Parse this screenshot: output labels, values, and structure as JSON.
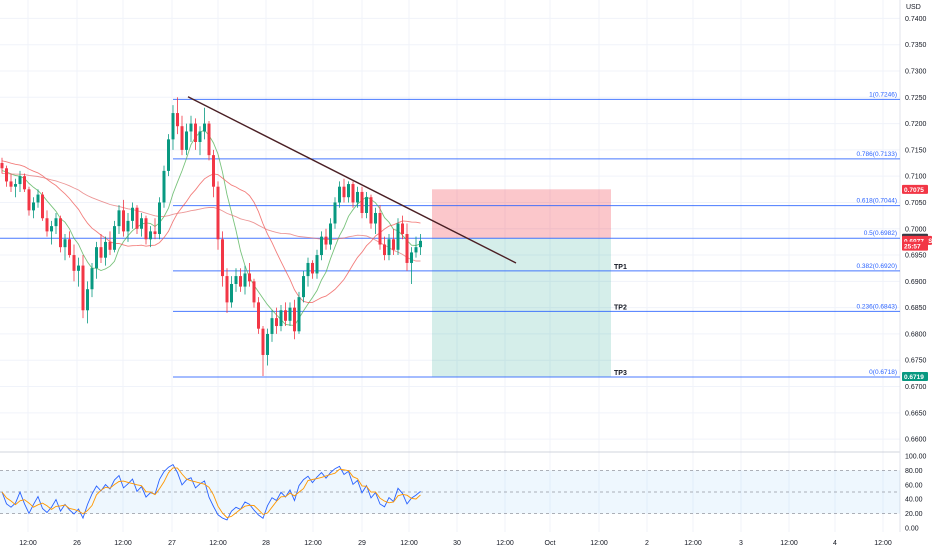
{
  "chart_data": {
    "type": "candlestick",
    "symbol": "MANAUSD",
    "currency_label": "USD",
    "price_axis": {
      "min": 0.6585,
      "max": 0.7435,
      "ticks": [
        "0.7400",
        "0.7350",
        "0.7300",
        "0.7250",
        "0.7200",
        "0.7150",
        "0.7100",
        "0.7050",
        "0.7000",
        "0.6950",
        "0.6900",
        "0.6850",
        "0.6800",
        "0.6750",
        "0.6700",
        "0.6650",
        "0.6600"
      ]
    },
    "time_axis": {
      "labels": [
        "12:00",
        "26",
        "12:00",
        "27",
        "12:00",
        "28",
        "12:00",
        "29",
        "12:00",
        "30",
        "12:00",
        "Oct",
        "12:00",
        "2",
        "12:00",
        "3",
        "12:00",
        "4",
        "12:00"
      ]
    },
    "fib_levels": [
      {
        "ratio": "1",
        "value": 0.7246,
        "label": "1(0.7246)"
      },
      {
        "ratio": "0.786",
        "value": 0.7133,
        "label": "0.786(0.7133)"
      },
      {
        "ratio": "0.618",
        "value": 0.7044,
        "label": "0.618(0.7044)"
      },
      {
        "ratio": "0.5",
        "value": 0.6982,
        "label": "0.5(0.6982)"
      },
      {
        "ratio": "0.382",
        "value": 0.692,
        "label": "0.382(0.6920)"
      },
      {
        "ratio": "0.236",
        "value": 0.6843,
        "label": "0.236(0.6843)"
      },
      {
        "ratio": "0",
        "value": 0.6718,
        "label": "0(0.6718)"
      }
    ],
    "take_profits": [
      {
        "label": "TP1",
        "value": 0.692
      },
      {
        "label": "TP2",
        "value": 0.6843
      },
      {
        "label": "TP3",
        "value": 0.6718
      }
    ],
    "price_tags": [
      {
        "text": "0.7075",
        "value": 0.7075,
        "color": "#f23645"
      },
      {
        "text": "0.6982",
        "value": 0.6982,
        "color": "#363a45"
      },
      {
        "text": "MANAUSD",
        "value": 0.6978,
        "color": "#f23645"
      },
      {
        "text": "0.6977",
        "value": 0.6977,
        "color": "#f23645"
      },
      {
        "text": "25:57",
        "value": 0.6967,
        "color": "#f23645"
      },
      {
        "text": "0.6719",
        "value": 0.6719,
        "color": "#089981"
      }
    ],
    "trade_box": {
      "stop_value": 0.7075,
      "entry_value": 0.6982,
      "target_value": 0.6718
    },
    "trendline": {
      "from_value": 0.7251,
      "to_value": 0.6935
    },
    "ohlc": [
      [
        0.7125,
        0.7135,
        0.7105,
        0.7115
      ],
      [
        0.7115,
        0.712,
        0.708,
        0.709
      ],
      [
        0.709,
        0.7105,
        0.707,
        0.708
      ],
      [
        0.708,
        0.7095,
        0.706,
        0.7085
      ],
      [
        0.7085,
        0.711,
        0.707,
        0.71
      ],
      [
        0.71,
        0.7105,
        0.707,
        0.7075
      ],
      [
        0.7075,
        0.708,
        0.7025,
        0.7035
      ],
      [
        0.7035,
        0.706,
        0.702,
        0.705
      ],
      [
        0.705,
        0.7075,
        0.704,
        0.7065
      ],
      [
        0.7065,
        0.707,
        0.7015,
        0.702
      ],
      [
        0.702,
        0.7035,
        0.6985,
        0.6995
      ],
      [
        0.6995,
        0.7015,
        0.697,
        0.7005
      ],
      [
        0.7005,
        0.703,
        0.699,
        0.702
      ],
      [
        0.702,
        0.7025,
        0.6955,
        0.6965
      ],
      [
        0.6965,
        0.699,
        0.694,
        0.698
      ],
      [
        0.698,
        0.6995,
        0.6945,
        0.695
      ],
      [
        0.695,
        0.697,
        0.69,
        0.692
      ],
      [
        0.692,
        0.6945,
        0.689,
        0.693
      ],
      [
        0.693,
        0.695,
        0.683,
        0.6845
      ],
      [
        0.6845,
        0.69,
        0.682,
        0.6885
      ],
      [
        0.6885,
        0.6935,
        0.687,
        0.6925
      ],
      [
        0.6925,
        0.6975,
        0.6905,
        0.6965
      ],
      [
        0.6965,
        0.699,
        0.6935,
        0.6945
      ],
      [
        0.6945,
        0.6985,
        0.693,
        0.6975
      ],
      [
        0.6975,
        0.6995,
        0.695,
        0.696
      ],
      [
        0.696,
        0.7015,
        0.6955,
        0.7005
      ],
      [
        0.7005,
        0.7045,
        0.699,
        0.7035
      ],
      [
        0.7035,
        0.7055,
        0.6985,
        0.6995
      ],
      [
        0.6995,
        0.703,
        0.6975,
        0.7015
      ],
      [
        0.7015,
        0.705,
        0.7,
        0.704
      ],
      [
        0.704,
        0.7045,
        0.699,
        0.7
      ],
      [
        0.7,
        0.703,
        0.6985,
        0.702
      ],
      [
        0.702,
        0.7025,
        0.697,
        0.698
      ],
      [
        0.698,
        0.7005,
        0.6965,
        0.6995
      ],
      [
        0.6995,
        0.702,
        0.698,
        0.699
      ],
      [
        0.699,
        0.706,
        0.698,
        0.705
      ],
      [
        0.705,
        0.712,
        0.704,
        0.711
      ],
      [
        0.711,
        0.718,
        0.71,
        0.717
      ],
      [
        0.717,
        0.7235,
        0.715,
        0.722
      ],
      [
        0.722,
        0.725,
        0.718,
        0.7195
      ],
      [
        0.7195,
        0.7215,
        0.714,
        0.715
      ],
      [
        0.715,
        0.72,
        0.714,
        0.7185
      ],
      [
        0.7185,
        0.7215,
        0.7165,
        0.72
      ],
      [
        0.72,
        0.721,
        0.715,
        0.7165
      ],
      [
        0.7165,
        0.7195,
        0.714,
        0.7185
      ],
      [
        0.7185,
        0.723,
        0.717,
        0.72
      ],
      [
        0.72,
        0.7205,
        0.713,
        0.714
      ],
      [
        0.714,
        0.715,
        0.706,
        0.708
      ],
      [
        0.708,
        0.709,
        0.696,
        0.698
      ],
      [
        0.698,
        0.6995,
        0.689,
        0.691
      ],
      [
        0.691,
        0.6925,
        0.684,
        0.686
      ],
      [
        0.686,
        0.691,
        0.685,
        0.6895
      ],
      [
        0.6895,
        0.6925,
        0.688,
        0.691
      ],
      [
        0.691,
        0.6925,
        0.688,
        0.689
      ],
      [
        0.689,
        0.693,
        0.6875,
        0.6915
      ],
      [
        0.6915,
        0.6935,
        0.689,
        0.69
      ],
      [
        0.69,
        0.6905,
        0.685,
        0.686
      ],
      [
        0.686,
        0.687,
        0.68,
        0.681
      ],
      [
        0.681,
        0.6815,
        0.672,
        0.676
      ],
      [
        0.676,
        0.681,
        0.674,
        0.68
      ],
      [
        0.68,
        0.6845,
        0.6785,
        0.683
      ],
      [
        0.683,
        0.685,
        0.68,
        0.6815
      ],
      [
        0.6815,
        0.6855,
        0.6805,
        0.6845
      ],
      [
        0.6845,
        0.686,
        0.6815,
        0.6825
      ],
      [
        0.6825,
        0.686,
        0.6815,
        0.685
      ],
      [
        0.685,
        0.6865,
        0.679,
        0.6805
      ],
      [
        0.6805,
        0.688,
        0.68,
        0.687
      ],
      [
        0.687,
        0.692,
        0.686,
        0.691
      ],
      [
        0.691,
        0.6945,
        0.689,
        0.6935
      ],
      [
        0.6935,
        0.694,
        0.6905,
        0.6915
      ],
      [
        0.6915,
        0.696,
        0.6905,
        0.695
      ],
      [
        0.695,
        0.6995,
        0.694,
        0.6985
      ],
      [
        0.6985,
        0.7,
        0.696,
        0.697
      ],
      [
        0.697,
        0.702,
        0.696,
        0.701
      ],
      [
        0.701,
        0.706,
        0.7,
        0.705
      ],
      [
        0.705,
        0.709,
        0.704,
        0.708
      ],
      [
        0.708,
        0.7095,
        0.705,
        0.706
      ],
      [
        0.706,
        0.709,
        0.705,
        0.7085
      ],
      [
        0.7085,
        0.709,
        0.704,
        0.705
      ],
      [
        0.705,
        0.708,
        0.704,
        0.707
      ],
      [
        0.707,
        0.708,
        0.702,
        0.703
      ],
      [
        0.703,
        0.707,
        0.702,
        0.706
      ],
      [
        0.706,
        0.7065,
        0.7,
        0.701
      ],
      [
        0.701,
        0.704,
        0.699,
        0.703
      ],
      [
        0.703,
        0.7045,
        0.696,
        0.697
      ],
      [
        0.697,
        0.6985,
        0.694,
        0.695
      ],
      [
        0.695,
        0.699,
        0.694,
        0.698
      ],
      [
        0.698,
        0.7,
        0.695,
        0.696
      ],
      [
        0.696,
        0.702,
        0.695,
        0.701
      ],
      [
        0.701,
        0.7025,
        0.698,
        0.699
      ],
      [
        0.699,
        0.701,
        0.692,
        0.6935
      ],
      [
        0.6935,
        0.6965,
        0.6895,
        0.6955
      ],
      [
        0.6955,
        0.6985,
        0.6945,
        0.6965
      ],
      [
        0.6965,
        0.699,
        0.695,
        0.6977
      ]
    ],
    "rsi_axis": {
      "ticks": [
        "100.00",
        "80.00",
        "60.00",
        "40.00",
        "20.00",
        "0.00"
      ],
      "band": [
        20,
        80
      ]
    }
  }
}
